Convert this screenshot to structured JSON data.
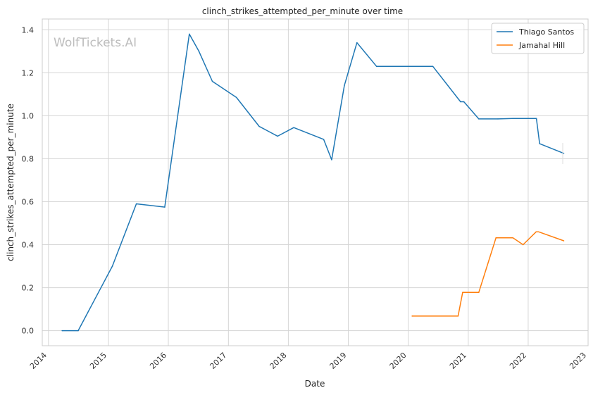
{
  "chart_data": {
    "type": "line",
    "title": "clinch_strikes_attempted_per_minute over time",
    "xlabel": "Date",
    "ylabel": "clinch_strikes_attempted_per_minute",
    "watermark": "WolfTickets.AI",
    "x_range": [
      "2013-11-24",
      "2023-01-01"
    ],
    "ylim": [
      -0.07,
      1.45
    ],
    "x_ticks": [
      "2014",
      "2015",
      "2016",
      "2017",
      "2018",
      "2019",
      "2020",
      "2021",
      "2022",
      "2023"
    ],
    "y_ticks": [
      "0.0",
      "0.2",
      "0.4",
      "0.6",
      "0.8",
      "1.0",
      "1.2",
      "1.4"
    ],
    "grid": true,
    "legend_position": "top-right",
    "series": [
      {
        "name": "Thiago Santos",
        "color": "#1f77b4",
        "points": [
          [
            "2014-03-25",
            0.0
          ],
          [
            "2014-07-01",
            0.0
          ],
          [
            "2015-01-25",
            0.3
          ],
          [
            "2015-06-20",
            0.59
          ],
          [
            "2015-12-10",
            0.575
          ],
          [
            "2016-05-08",
            1.38
          ],
          [
            "2016-07-05",
            1.3
          ],
          [
            "2016-09-25",
            1.16
          ],
          [
            "2017-02-19",
            1.085
          ],
          [
            "2017-07-08",
            0.95
          ],
          [
            "2017-10-28",
            0.905
          ],
          [
            "2018-02-03",
            0.945
          ],
          [
            "2018-08-04",
            0.89
          ],
          [
            "2018-09-22",
            0.795
          ],
          [
            "2018-12-08",
            1.14
          ],
          [
            "2019-02-23",
            1.34
          ],
          [
            "2019-06-22",
            1.23
          ],
          [
            "2020-05-30",
            1.23
          ],
          [
            "2020-11-15",
            1.065
          ],
          [
            "2020-12-05",
            1.065
          ],
          [
            "2021-03-06",
            0.985
          ],
          [
            "2021-07-01",
            0.985
          ],
          [
            "2021-10-01",
            0.987
          ],
          [
            "2022-02-20",
            0.987
          ],
          [
            "2022-03-12",
            0.87
          ],
          [
            "2022-08-06",
            0.825
          ]
        ]
      },
      {
        "name": "Jamahal Hill",
        "color": "#ff7f0e",
        "points": [
          [
            "2020-01-25",
            0.068
          ],
          [
            "2020-10-31",
            0.068
          ],
          [
            "2020-11-28",
            0.178
          ],
          [
            "2021-03-06",
            0.178
          ],
          [
            "2021-06-19",
            0.432
          ],
          [
            "2021-09-30",
            0.432
          ],
          [
            "2021-12-01",
            0.4
          ],
          [
            "2022-02-19",
            0.46
          ],
          [
            "2022-03-05",
            0.46
          ],
          [
            "2022-08-06",
            0.418
          ]
        ]
      }
    ]
  }
}
